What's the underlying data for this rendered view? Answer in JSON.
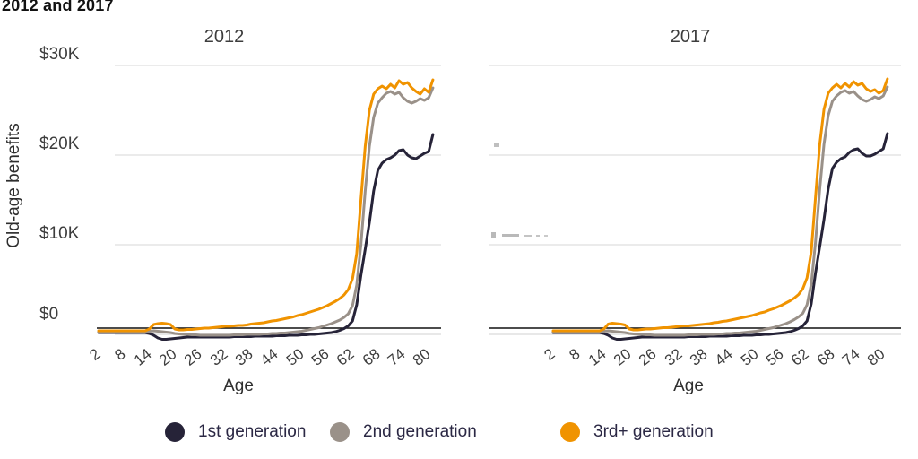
{
  "title": "2012 and 2017",
  "y_axis": {
    "label": "Old-age benefits",
    "ticks": [
      "$30K",
      "$20K",
      "$10K",
      "$0"
    ],
    "tick_values": [
      30,
      20,
      10,
      0
    ]
  },
  "x_axis": {
    "label": "Age",
    "ticks": [
      2,
      8,
      14,
      20,
      26,
      32,
      38,
      44,
      50,
      56,
      62,
      68,
      74,
      80
    ]
  },
  "legend": [
    {
      "label": "1st generation",
      "color": "#262338"
    },
    {
      "label": "2nd generation",
      "color": "#9a9189"
    },
    {
      "label": "3rd+ generation",
      "color": "#f09300"
    }
  ],
  "colors": {
    "navy": "#262338",
    "gray": "#9a9189",
    "orange": "#f09300",
    "gridline": "#ebebeb",
    "zero_gridline": "#e8e8e8",
    "axis_line": "#111111",
    "text": "#3d3d3d"
  },
  "chart_data": {
    "type": "line",
    "x_label": "Age",
    "y_label": "Old-age benefits",
    "y_unit": "thousand dollars",
    "ylim": [
      -1,
      31
    ],
    "ytick_values": [
      0,
      10,
      20,
      30
    ],
    "grid": true,
    "legend_position": "bottom",
    "x": [
      2,
      3,
      4,
      5,
      6,
      7,
      8,
      9,
      10,
      11,
      12,
      13,
      14,
      15,
      16,
      17,
      18,
      19,
      20,
      21,
      22,
      23,
      24,
      25,
      26,
      27,
      28,
      29,
      30,
      31,
      32,
      33,
      34,
      35,
      36,
      37,
      38,
      39,
      40,
      41,
      42,
      43,
      44,
      45,
      46,
      47,
      48,
      49,
      50,
      51,
      52,
      53,
      54,
      55,
      56,
      57,
      58,
      59,
      60,
      61,
      62,
      63,
      64,
      65,
      66,
      67,
      68,
      69,
      70,
      71,
      72,
      73,
      74,
      75,
      76,
      77,
      78,
      79,
      80,
      81
    ],
    "facets": [
      {
        "title": "2012",
        "series": [
          {
            "name": "1st generation",
            "color": "#262338",
            "values": [
              0.2,
              0.2,
              0.2,
              0.2,
              0.2,
              0.2,
              0.2,
              0.2,
              0.2,
              0.2,
              0.2,
              0.2,
              0.1,
              -0.1,
              -0.4,
              -0.55,
              -0.55,
              -0.5,
              -0.45,
              -0.4,
              -0.35,
              -0.3,
              -0.3,
              -0.3,
              -0.3,
              -0.3,
              -0.3,
              -0.3,
              -0.3,
              -0.3,
              -0.3,
              -0.3,
              -0.25,
              -0.25,
              -0.25,
              -0.25,
              -0.25,
              -0.2,
              -0.2,
              -0.2,
              -0.2,
              -0.2,
              -0.15,
              -0.15,
              -0.15,
              -0.1,
              -0.1,
              -0.1,
              -0.05,
              -0.05,
              0.0,
              0.0,
              0.05,
              0.1,
              0.15,
              0.2,
              0.3,
              0.45,
              0.65,
              0.95,
              1.5,
              3.3,
              6.6,
              9.5,
              12.5,
              16.0,
              18.3,
              19.1,
              19.5,
              19.7,
              20.0,
              20.5,
              20.6,
              20.0,
              19.7,
              19.6,
              19.9,
              20.2,
              20.4,
              22.3
            ]
          },
          {
            "name": "2nd generation",
            "color": "#9a9189",
            "values": [
              0.3,
              0.3,
              0.3,
              0.3,
              0.3,
              0.3,
              0.3,
              0.3,
              0.3,
              0.3,
              0.3,
              0.3,
              0.35,
              0.4,
              0.35,
              0.3,
              0.25,
              0.2,
              0.1,
              0.05,
              0.0,
              0.0,
              -0.05,
              -0.05,
              -0.1,
              -0.1,
              -0.1,
              -0.1,
              -0.1,
              -0.1,
              -0.1,
              -0.1,
              -0.05,
              -0.05,
              -0.05,
              0.0,
              0.0,
              0.0,
              0.0,
              0.05,
              0.05,
              0.1,
              0.1,
              0.15,
              0.15,
              0.2,
              0.25,
              0.3,
              0.35,
              0.45,
              0.55,
              0.65,
              0.75,
              0.9,
              1.05,
              1.2,
              1.4,
              1.6,
              1.9,
              2.3,
              3.2,
              5.5,
              10.0,
              16.0,
              21.0,
              24.2,
              25.8,
              26.4,
              26.9,
              27.1,
              26.8,
              27.0,
              26.4,
              26.0,
              25.8,
              26.0,
              26.3,
              26.1,
              26.4,
              27.5
            ]
          },
          {
            "name": "3rd+ generation",
            "color": "#f09300",
            "values": [
              0.4,
              0.4,
              0.4,
              0.4,
              0.4,
              0.4,
              0.4,
              0.4,
              0.4,
              0.4,
              0.4,
              0.4,
              0.6,
              1.1,
              1.2,
              1.25,
              1.2,
              1.1,
              0.6,
              0.5,
              0.5,
              0.55,
              0.55,
              0.6,
              0.65,
              0.7,
              0.7,
              0.75,
              0.8,
              0.85,
              0.9,
              0.9,
              0.95,
              1.0,
              1.0,
              1.05,
              1.15,
              1.2,
              1.25,
              1.3,
              1.4,
              1.5,
              1.55,
              1.65,
              1.75,
              1.85,
              1.95,
              2.1,
              2.2,
              2.35,
              2.5,
              2.65,
              2.8,
              3.0,
              3.2,
              3.45,
              3.7,
              4.0,
              4.4,
              5.0,
              6.2,
              9.0,
              15.0,
              21.0,
              25.0,
              26.8,
              27.4,
              27.7,
              27.4,
              27.9,
              27.5,
              28.3,
              27.9,
              28.1,
              27.5,
              27.1,
              26.8,
              27.4,
              27.0,
              28.4
            ]
          }
        ]
      },
      {
        "title": "2017",
        "series": [
          {
            "name": "1st generation",
            "color": "#262338",
            "values": [
              0.2,
              0.2,
              0.2,
              0.2,
              0.2,
              0.2,
              0.2,
              0.2,
              0.2,
              0.2,
              0.2,
              0.2,
              0.1,
              -0.1,
              -0.4,
              -0.55,
              -0.55,
              -0.5,
              -0.45,
              -0.4,
              -0.35,
              -0.3,
              -0.3,
              -0.3,
              -0.3,
              -0.3,
              -0.3,
              -0.3,
              -0.3,
              -0.3,
              -0.3,
              -0.3,
              -0.25,
              -0.25,
              -0.25,
              -0.25,
              -0.25,
              -0.2,
              -0.2,
              -0.2,
              -0.2,
              -0.2,
              -0.15,
              -0.15,
              -0.15,
              -0.1,
              -0.1,
              -0.1,
              -0.05,
              -0.05,
              0.0,
              0.0,
              0.05,
              0.1,
              0.15,
              0.2,
              0.3,
              0.45,
              0.65,
              0.95,
              1.5,
              3.4,
              6.8,
              9.8,
              12.8,
              16.2,
              18.5,
              19.2,
              19.6,
              19.8,
              20.3,
              20.6,
              20.7,
              20.2,
              19.9,
              19.9,
              20.1,
              20.4,
              20.7,
              22.4
            ]
          },
          {
            "name": "2nd generation",
            "color": "#9a9189",
            "values": [
              0.3,
              0.3,
              0.3,
              0.3,
              0.3,
              0.3,
              0.3,
              0.3,
              0.3,
              0.3,
              0.3,
              0.3,
              0.35,
              0.4,
              0.35,
              0.3,
              0.25,
              0.2,
              0.1,
              0.05,
              0.0,
              0.0,
              -0.05,
              -0.05,
              -0.1,
              -0.1,
              -0.1,
              -0.1,
              -0.1,
              -0.1,
              -0.1,
              -0.1,
              -0.05,
              -0.05,
              -0.05,
              0.0,
              0.0,
              0.0,
              0.0,
              0.05,
              0.05,
              0.1,
              0.1,
              0.15,
              0.15,
              0.2,
              0.25,
              0.3,
              0.35,
              0.45,
              0.55,
              0.65,
              0.75,
              0.9,
              1.05,
              1.2,
              1.4,
              1.65,
              1.95,
              2.35,
              3.3,
              5.6,
              10.2,
              16.2,
              21.2,
              24.4,
              26.0,
              26.6,
              27.0,
              27.2,
              26.9,
              27.1,
              26.6,
              26.2,
              26.0,
              26.2,
              26.5,
              26.3,
              26.6,
              27.6
            ]
          },
          {
            "name": "3rd+ generation",
            "color": "#f09300",
            "values": [
              0.4,
              0.4,
              0.4,
              0.4,
              0.4,
              0.4,
              0.4,
              0.4,
              0.4,
              0.4,
              0.4,
              0.4,
              0.6,
              1.15,
              1.25,
              1.2,
              1.15,
              1.05,
              0.6,
              0.5,
              0.5,
              0.55,
              0.6,
              0.6,
              0.65,
              0.7,
              0.75,
              0.75,
              0.8,
              0.85,
              0.9,
              0.95,
              0.95,
              1.0,
              1.05,
              1.1,
              1.15,
              1.2,
              1.3,
              1.35,
              1.45,
              1.5,
              1.6,
              1.7,
              1.8,
              1.9,
              2.0,
              2.1,
              2.25,
              2.4,
              2.5,
              2.7,
              2.85,
              3.05,
              3.25,
              3.5,
              3.75,
              4.05,
              4.45,
              5.1,
              6.3,
              9.2,
              15.2,
              21.2,
              25.1,
              26.9,
              27.5,
              27.9,
              27.5,
              28.0,
              27.6,
              28.2,
              27.8,
              28.0,
              27.4,
              27.1,
              27.3,
              26.9,
              27.2,
              28.5
            ]
          }
        ]
      }
    ]
  }
}
